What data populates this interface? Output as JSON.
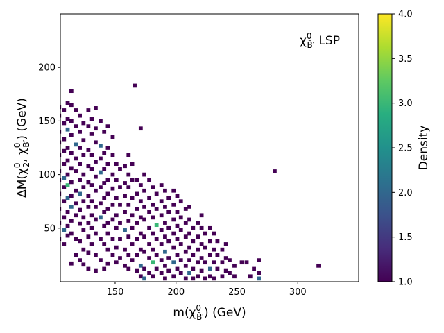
{
  "chart_data": {
    "type": "heatmap",
    "xlabel": {
      "main": "m(",
      "chi": "χ",
      "tilde": "~",
      "sup": "0",
      "sub": "B̃′",
      "unit": ") (GeV)"
    },
    "ylabel": {
      "main": "ΔM(",
      "chi1": "χ",
      "sup1": "0",
      "sub1": "2",
      "sep": ", ",
      "chi2": "χ",
      "sup2": "0",
      "sub2": "B̃′",
      "unit": ") (GeV)"
    },
    "annotation": {
      "chi": "χ",
      "tilde": "~",
      "sup": "0",
      "sub": "B̃′",
      "text": "LSP"
    },
    "colorbar": {
      "label": "Density",
      "min": 1.0,
      "max": 4.0,
      "ticks": [
        "1.0",
        "1.5",
        "2.0",
        "2.5",
        "3.0",
        "3.5",
        "4.0"
      ],
      "colormap": "viridis"
    },
    "xlim": [
      105,
      350
    ],
    "ylim": [
      0,
      250
    ],
    "xticks": [
      150,
      200,
      250,
      300
    ],
    "yticks": [
      50,
      100,
      150,
      200
    ],
    "bin_width": [
      3.3,
      3.7
    ],
    "points": [
      [
        104,
        163,
        1
      ],
      [
        104,
        155,
        1
      ],
      [
        104,
        140,
        1
      ],
      [
        104,
        130,
        1
      ],
      [
        104,
        118,
        1
      ],
      [
        104,
        103,
        1
      ],
      [
        104,
        95,
        1
      ],
      [
        104,
        82,
        1
      ],
      [
        104,
        68,
        1
      ],
      [
        104,
        55,
        1
      ],
      [
        104,
        40,
        1
      ],
      [
        108,
        160,
        1
      ],
      [
        108,
        148,
        1
      ],
      [
        108,
        133,
        1
      ],
      [
        108,
        122,
        1
      ],
      [
        108,
        110,
        1
      ],
      [
        108,
        97,
        2
      ],
      [
        108,
        88,
        1
      ],
      [
        108,
        75,
        1
      ],
      [
        108,
        60,
        1
      ],
      [
        108,
        48,
        2
      ],
      [
        108,
        35,
        1
      ],
      [
        111,
        167,
        1
      ],
      [
        111,
        152,
        1
      ],
      [
        111,
        142,
        2
      ],
      [
        111,
        125,
        1
      ],
      [
        111,
        113,
        1
      ],
      [
        111,
        100,
        1
      ],
      [
        111,
        90,
        3
      ],
      [
        111,
        78,
        2
      ],
      [
        111,
        65,
        1
      ],
      [
        111,
        52,
        1
      ],
      [
        111,
        43,
        1
      ],
      [
        114,
        178,
        1
      ],
      [
        114,
        165,
        1
      ],
      [
        114,
        150,
        1
      ],
      [
        114,
        137,
        1
      ],
      [
        114,
        120,
        1
      ],
      [
        114,
        106,
        1
      ],
      [
        114,
        93,
        1
      ],
      [
        114,
        80,
        1
      ],
      [
        114,
        70,
        2
      ],
      [
        114,
        57,
        1
      ],
      [
        114,
        45,
        1
      ],
      [
        114,
        17,
        1
      ],
      [
        118,
        160,
        1
      ],
      [
        118,
        145,
        1
      ],
      [
        118,
        128,
        2
      ],
      [
        118,
        115,
        1
      ],
      [
        118,
        103,
        1
      ],
      [
        118,
        85,
        1
      ],
      [
        118,
        73,
        1
      ],
      [
        118,
        62,
        1
      ],
      [
        118,
        40,
        1
      ],
      [
        118,
        25,
        1
      ],
      [
        121,
        155,
        1
      ],
      [
        121,
        140,
        1
      ],
      [
        121,
        125,
        1
      ],
      [
        121,
        110,
        1
      ],
      [
        121,
        95,
        1
      ],
      [
        121,
        82,
        2
      ],
      [
        121,
        67,
        1
      ],
      [
        121,
        54,
        1
      ],
      [
        121,
        38,
        1
      ],
      [
        121,
        20,
        1
      ],
      [
        124,
        148,
        1
      ],
      [
        124,
        132,
        1
      ],
      [
        124,
        118,
        1
      ],
      [
        124,
        100,
        1
      ],
      [
        124,
        88,
        1
      ],
      [
        124,
        75,
        1
      ],
      [
        124,
        60,
        1
      ],
      [
        124,
        48,
        1
      ],
      [
        124,
        30,
        1
      ],
      [
        124,
        16,
        1
      ],
      [
        128,
        160,
        1
      ],
      [
        128,
        145,
        1
      ],
      [
        128,
        123,
        1
      ],
      [
        128,
        108,
        1
      ],
      [
        128,
        93,
        1
      ],
      [
        128,
        80,
        1
      ],
      [
        128,
        70,
        1
      ],
      [
        128,
        55,
        1
      ],
      [
        128,
        42,
        1
      ],
      [
        128,
        27,
        1
      ],
      [
        128,
        12,
        1
      ],
      [
        131,
        152,
        1
      ],
      [
        131,
        138,
        1
      ],
      [
        131,
        118,
        1
      ],
      [
        131,
        105,
        1
      ],
      [
        131,
        90,
        1
      ],
      [
        131,
        75,
        1
      ],
      [
        131,
        62,
        1
      ],
      [
        131,
        50,
        1
      ],
      [
        131,
        35,
        1
      ],
      [
        134,
        162,
        1
      ],
      [
        134,
        143,
        1
      ],
      [
        134,
        130,
        1
      ],
      [
        134,
        112,
        1
      ],
      [
        134,
        98,
        1
      ],
      [
        134,
        85,
        1
      ],
      [
        134,
        70,
        1
      ],
      [
        134,
        58,
        1
      ],
      [
        134,
        45,
        1
      ],
      [
        134,
        25,
        1
      ],
      [
        134,
        10,
        1
      ],
      [
        138,
        150,
        1
      ],
      [
        138,
        127,
        2
      ],
      [
        138,
        115,
        1
      ],
      [
        138,
        102,
        2
      ],
      [
        138,
        88,
        1
      ],
      [
        138,
        73,
        1
      ],
      [
        138,
        60,
        2
      ],
      [
        138,
        40,
        1
      ],
      [
        138,
        20,
        1
      ],
      [
        141,
        140,
        1
      ],
      [
        141,
        120,
        1
      ],
      [
        141,
        105,
        1
      ],
      [
        141,
        92,
        1
      ],
      [
        141,
        78,
        1
      ],
      [
        141,
        65,
        1
      ],
      [
        141,
        52,
        1
      ],
      [
        141,
        35,
        1
      ],
      [
        141,
        12,
        1
      ],
      [
        144,
        145,
        1
      ],
      [
        144,
        125,
        1
      ],
      [
        144,
        110,
        1
      ],
      [
        144,
        95,
        1
      ],
      [
        144,
        82,
        1
      ],
      [
        144,
        68,
        1
      ],
      [
        144,
        55,
        1
      ],
      [
        144,
        45,
        1
      ],
      [
        144,
        30,
        1
      ],
      [
        144,
        17,
        1
      ],
      [
        148,
        135,
        1
      ],
      [
        148,
        118,
        1
      ],
      [
        148,
        100,
        1
      ],
      [
        148,
        87,
        1
      ],
      [
        148,
        72,
        1
      ],
      [
        148,
        58,
        1
      ],
      [
        148,
        40,
        1
      ],
      [
        148,
        25,
        1
      ],
      [
        151,
        110,
        1
      ],
      [
        151,
        95,
        1
      ],
      [
        151,
        78,
        1
      ],
      [
        151,
        62,
        1
      ],
      [
        151,
        50,
        1
      ],
      [
        151,
        32,
        1
      ],
      [
        151,
        18,
        1
      ],
      [
        154,
        105,
        1
      ],
      [
        154,
        88,
        1
      ],
      [
        154,
        72,
        1
      ],
      [
        154,
        55,
        1
      ],
      [
        154,
        40,
        1
      ],
      [
        154,
        22,
        1
      ],
      [
        158,
        108,
        1
      ],
      [
        158,
        92,
        1
      ],
      [
        158,
        80,
        1
      ],
      [
        158,
        65,
        1
      ],
      [
        158,
        48,
        2
      ],
      [
        158,
        30,
        1
      ],
      [
        158,
        15,
        1
      ],
      [
        161,
        118,
        1
      ],
      [
        161,
        100,
        1
      ],
      [
        161,
        88,
        1
      ],
      [
        161,
        72,
        1
      ],
      [
        161,
        57,
        1
      ],
      [
        161,
        42,
        1
      ],
      [
        161,
        25,
        1
      ],
      [
        161,
        12,
        1
      ],
      [
        164,
        110,
        1
      ],
      [
        164,
        95,
        1
      ],
      [
        164,
        78,
        1
      ],
      [
        164,
        62,
        1
      ],
      [
        164,
        50,
        1
      ],
      [
        164,
        35,
        1
      ],
      [
        164,
        20,
        1
      ],
      [
        166,
        183,
        1
      ],
      [
        168,
        95,
        1
      ],
      [
        168,
        82,
        1
      ],
      [
        168,
        68,
        1
      ],
      [
        168,
        55,
        1
      ],
      [
        168,
        40,
        1
      ],
      [
        168,
        25,
        1
      ],
      [
        168,
        10,
        1
      ],
      [
        171,
        143,
        1
      ],
      [
        171,
        90,
        1
      ],
      [
        171,
        75,
        1
      ],
      [
        171,
        60,
        1
      ],
      [
        171,
        45,
        1
      ],
      [
        171,
        30,
        1
      ],
      [
        171,
        15,
        2
      ],
      [
        171,
        5,
        1
      ],
      [
        174,
        100,
        1
      ],
      [
        174,
        85,
        1
      ],
      [
        174,
        70,
        1
      ],
      [
        174,
        58,
        1
      ],
      [
        174,
        42,
        1
      ],
      [
        174,
        28,
        1
      ],
      [
        174,
        12,
        1
      ],
      [
        174,
        3,
        2
      ],
      [
        178,
        95,
        1
      ],
      [
        178,
        78,
        1
      ],
      [
        178,
        65,
        1
      ],
      [
        178,
        50,
        1
      ],
      [
        178,
        35,
        1
      ],
      [
        178,
        22,
        1
      ],
      [
        178,
        8,
        1
      ],
      [
        181,
        88,
        1
      ],
      [
        181,
        72,
        1
      ],
      [
        181,
        60,
        1
      ],
      [
        181,
        45,
        1
      ],
      [
        181,
        30,
        1
      ],
      [
        181,
        18,
        3
      ],
      [
        181,
        5,
        1
      ],
      [
        184,
        82,
        1
      ],
      [
        184,
        68,
        1
      ],
      [
        184,
        53,
        3
      ],
      [
        184,
        40,
        1
      ],
      [
        184,
        25,
        1
      ],
      [
        184,
        12,
        1
      ],
      [
        188,
        90,
        1
      ],
      [
        188,
        75,
        1
      ],
      [
        188,
        62,
        1
      ],
      [
        188,
        48,
        1
      ],
      [
        188,
        35,
        1
      ],
      [
        188,
        20,
        1
      ],
      [
        188,
        8,
        1
      ],
      [
        191,
        85,
        1
      ],
      [
        191,
        70,
        1
      ],
      [
        191,
        55,
        1
      ],
      [
        191,
        42,
        1
      ],
      [
        191,
        28,
        2
      ],
      [
        191,
        15,
        1
      ],
      [
        191,
        3,
        1
      ],
      [
        194,
        78,
        1
      ],
      [
        194,
        65,
        1
      ],
      [
        194,
        50,
        1
      ],
      [
        194,
        38,
        1
      ],
      [
        194,
        22,
        1
      ],
      [
        194,
        10,
        1
      ],
      [
        198,
        85,
        1
      ],
      [
        198,
        72,
        1
      ],
      [
        198,
        58,
        1
      ],
      [
        198,
        45,
        1
      ],
      [
        198,
        32,
        1
      ],
      [
        198,
        18,
        2
      ],
      [
        198,
        5,
        1
      ],
      [
        201,
        80,
        1
      ],
      [
        201,
        65,
        1
      ],
      [
        201,
        52,
        1
      ],
      [
        201,
        40,
        1
      ],
      [
        201,
        25,
        1
      ],
      [
        201,
        12,
        1
      ],
      [
        204,
        75,
        1
      ],
      [
        204,
        60,
        1
      ],
      [
        204,
        48,
        1
      ],
      [
        204,
        35,
        1
      ],
      [
        204,
        20,
        1
      ],
      [
        204,
        8,
        1
      ],
      [
        208,
        68,
        1
      ],
      [
        208,
        55,
        1
      ],
      [
        208,
        42,
        1
      ],
      [
        208,
        28,
        1
      ],
      [
        208,
        15,
        1
      ],
      [
        208,
        3,
        1
      ],
      [
        211,
        70,
        1
      ],
      [
        211,
        58,
        1
      ],
      [
        211,
        45,
        1
      ],
      [
        211,
        32,
        1
      ],
      [
        211,
        20,
        1
      ],
      [
        211,
        8,
        2
      ],
      [
        214,
        50,
        1
      ],
      [
        214,
        38,
        1
      ],
      [
        214,
        25,
        1
      ],
      [
        214,
        12,
        1
      ],
      [
        214,
        3,
        1
      ],
      [
        218,
        55,
        1
      ],
      [
        218,
        42,
        1
      ],
      [
        218,
        30,
        1
      ],
      [
        218,
        18,
        1
      ],
      [
        218,
        5,
        1
      ],
      [
        221,
        62,
        1
      ],
      [
        221,
        50,
        1
      ],
      [
        221,
        35,
        1
      ],
      [
        221,
        22,
        1
      ],
      [
        221,
        10,
        1
      ],
      [
        224,
        45,
        1
      ],
      [
        224,
        32,
        1
      ],
      [
        224,
        18,
        1
      ],
      [
        224,
        3,
        1
      ],
      [
        228,
        50,
        1
      ],
      [
        228,
        38,
        1
      ],
      [
        228,
        25,
        1
      ],
      [
        228,
        12,
        2
      ],
      [
        228,
        5,
        1
      ],
      [
        231,
        45,
        1
      ],
      [
        231,
        30,
        1
      ],
      [
        231,
        18,
        1
      ],
      [
        231,
        3,
        1
      ],
      [
        234,
        38,
        1
      ],
      [
        234,
        25,
        1
      ],
      [
        234,
        12,
        1
      ],
      [
        238,
        30,
        1
      ],
      [
        238,
        18,
        1
      ],
      [
        238,
        5,
        1
      ],
      [
        241,
        35,
        1
      ],
      [
        241,
        22,
        1
      ],
      [
        241,
        10,
        1
      ],
      [
        244,
        20,
        1
      ],
      [
        244,
        8,
        1
      ],
      [
        248,
        15,
        1
      ],
      [
        248,
        5,
        1
      ],
      [
        254,
        18,
        1
      ],
      [
        258,
        18,
        1
      ],
      [
        261,
        5,
        1
      ],
      [
        264,
        12,
        1
      ],
      [
        268,
        20,
        1
      ],
      [
        268,
        8,
        1
      ],
      [
        268,
        3,
        2
      ],
      [
        281,
        103,
        1
      ],
      [
        317,
        15,
        1
      ]
    ]
  }
}
